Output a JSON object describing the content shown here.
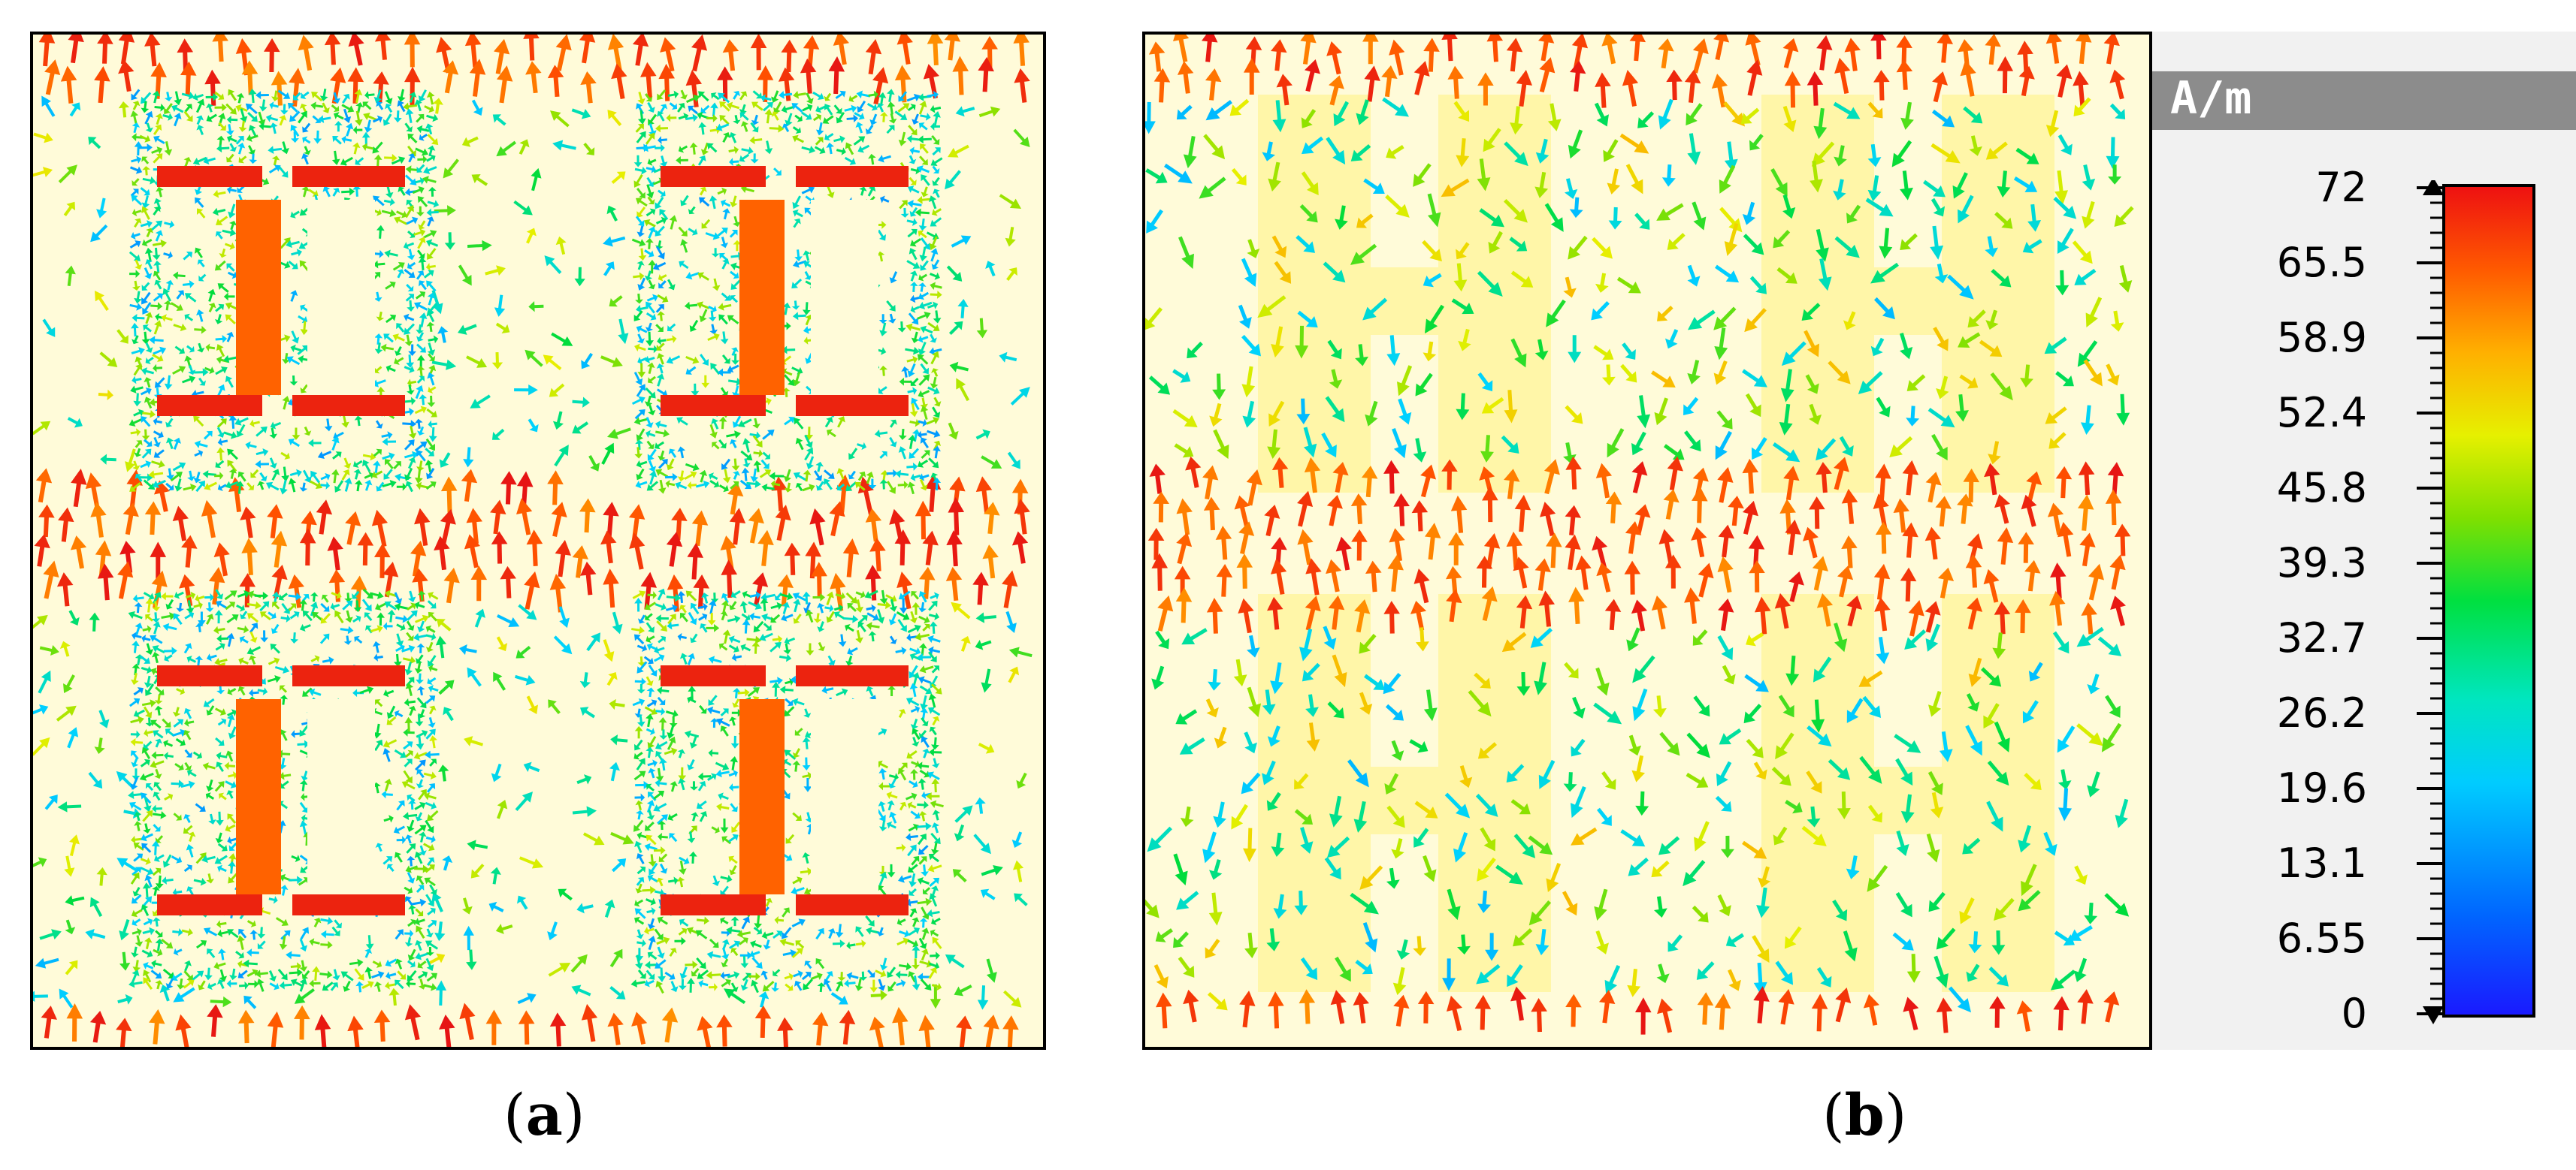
{
  "captions": {
    "a": {
      "open": "(",
      "letter": "a",
      "close": ")"
    },
    "b": {
      "open": "(",
      "letter": "b",
      "close": ")"
    }
  },
  "legend": {
    "unit": "A/m",
    "ticks": [
      "72",
      "65.5",
      "58.9",
      "52.4",
      "45.8",
      "39.3",
      "32.7",
      "26.2",
      "19.6",
      "13.1",
      "6.55",
      "0"
    ],
    "min": 0,
    "max": 72
  },
  "colors": {
    "background": "#fffbd9",
    "high": "#ee1111",
    "mid": "#00e040",
    "low": "#1a1aff",
    "legend_header": "#8c8c8c"
  },
  "icons": {
    "field_arrows": "arrow-icon",
    "max_marker": "triangle-up-icon",
    "min_marker": "triangle-down-icon"
  }
}
